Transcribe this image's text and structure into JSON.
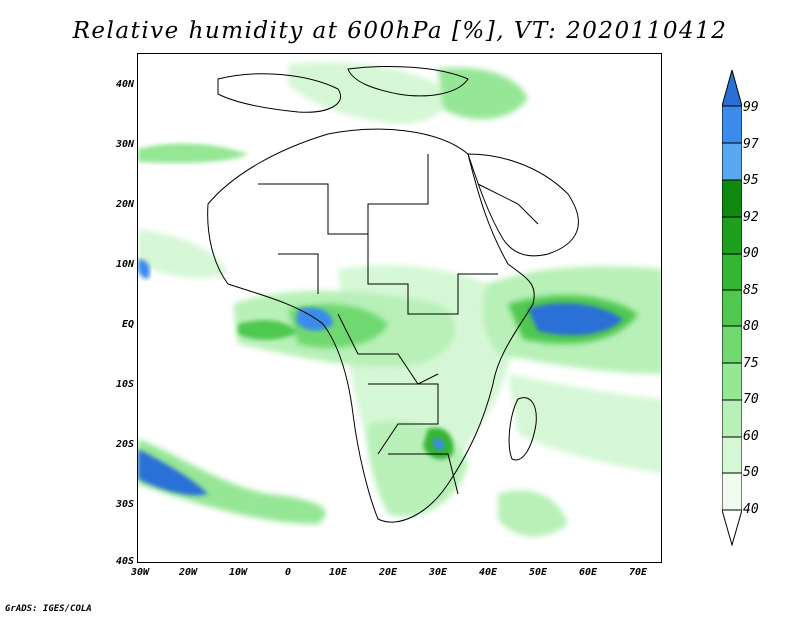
{
  "title": "Relative humidity at 600hPa [%], VT: 2020110412",
  "credit": "GrADS: IGES/COLA",
  "axes": {
    "lat_labels": [
      "40N",
      "30N",
      "20N",
      "10N",
      "EQ",
      "10S",
      "20S",
      "30S",
      "40S"
    ],
    "lon_labels": [
      "30W",
      "20W",
      "10W",
      "0",
      "10E",
      "20E",
      "30E",
      "40E",
      "50E",
      "60E",
      "70E"
    ]
  },
  "colorbar": {
    "levels": [
      "99",
      "97",
      "95",
      "92",
      "90",
      "85",
      "80",
      "75",
      "70",
      "60",
      "50",
      "40"
    ],
    "colors": [
      "#2a6fd6",
      "#3b8bea",
      "#5aa8f0",
      "#0f8a0f",
      "#1ea01e",
      "#34b534",
      "#50c850",
      "#6fd86f",
      "#95e695",
      "#b8f0b8",
      "#d6f7d6",
      "#effcef"
    ]
  }
}
